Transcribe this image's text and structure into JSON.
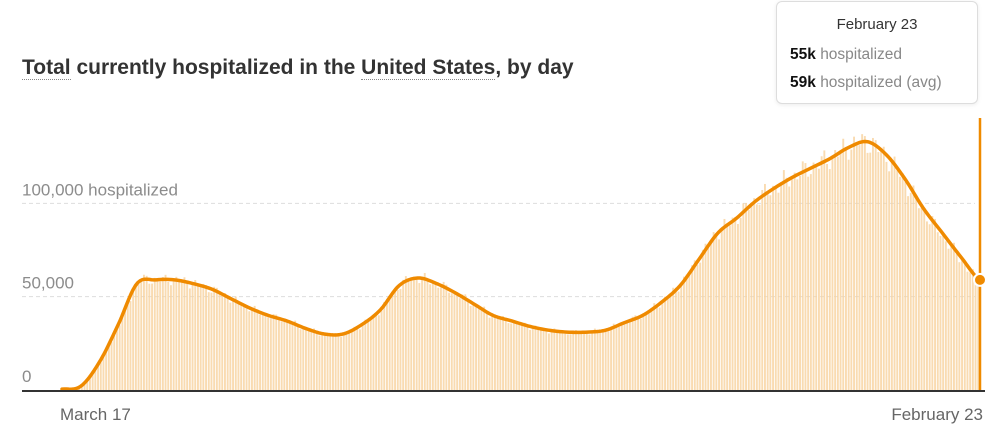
{
  "title": {
    "part1": "Total",
    "part2": " currently hospitalized in the ",
    "part3": "United States",
    "part4": ", by day"
  },
  "tooltip": {
    "date": "February 23",
    "rows": [
      {
        "value": "55k",
        "label": "hospitalized"
      },
      {
        "value": "59k",
        "label": "hospitalized (avg)"
      }
    ]
  },
  "colors": {
    "line": "#ef8a00",
    "bar": "#f8d5a3",
    "marker_line": "#ef8a00",
    "grid": "#dddddd",
    "tick_text": "#8c8c8c",
    "axis": "#333333"
  },
  "chart_data": {
    "type": "area",
    "title": "Total currently hospitalized in the United States, by day",
    "x_tick_labels": [
      "March 17",
      "February 23"
    ],
    "y_tick_labels": [
      {
        "value": 0,
        "label": "0"
      },
      {
        "value": 50000,
        "label": "50,000"
      },
      {
        "value": 100000,
        "label": "100,000 hospitalized"
      }
    ],
    "ylim": [
      0,
      150000
    ],
    "grid": true,
    "series": [
      {
        "name": "hospitalized (avg)",
        "style": "line",
        "points": [
          {
            "x": "March 17",
            "y": 500
          },
          {
            "x": "March 24",
            "y": 2000
          },
          {
            "x": "March 31",
            "y": 15000
          },
          {
            "x": "April 7",
            "y": 35000
          },
          {
            "x": "April 14",
            "y": 57000
          },
          {
            "x": "April 21",
            "y": 59000
          },
          {
            "x": "April 28",
            "y": 59000
          },
          {
            "x": "May 5",
            "y": 57000
          },
          {
            "x": "May 12",
            "y": 54000
          },
          {
            "x": "May 19",
            "y": 49000
          },
          {
            "x": "May 26",
            "y": 44000
          },
          {
            "x": "June 2",
            "y": 40000
          },
          {
            "x": "June 9",
            "y": 37000
          },
          {
            "x": "June 16",
            "y": 33000
          },
          {
            "x": "June 23",
            "y": 30000
          },
          {
            "x": "June 30",
            "y": 30000
          },
          {
            "x": "July 7",
            "y": 35000
          },
          {
            "x": "July 14",
            "y": 43000
          },
          {
            "x": "July 21",
            "y": 56000
          },
          {
            "x": "July 28",
            "y": 60000
          },
          {
            "x": "August 4",
            "y": 57000
          },
          {
            "x": "August 11",
            "y": 52000
          },
          {
            "x": "August 18",
            "y": 46000
          },
          {
            "x": "August 25",
            "y": 40000
          },
          {
            "x": "September 1",
            "y": 37000
          },
          {
            "x": "September 8",
            "y": 34000
          },
          {
            "x": "September 15",
            "y": 32000
          },
          {
            "x": "September 22",
            "y": 31000
          },
          {
            "x": "September 29",
            "y": 31000
          },
          {
            "x": "October 6",
            "y": 32000
          },
          {
            "x": "October 13",
            "y": 36000
          },
          {
            "x": "October 20",
            "y": 40000
          },
          {
            "x": "October 27",
            "y": 47000
          },
          {
            "x": "November 3",
            "y": 56000
          },
          {
            "x": "November 10",
            "y": 70000
          },
          {
            "x": "November 17",
            "y": 84000
          },
          {
            "x": "November 24",
            "y": 92000
          },
          {
            "x": "December 1",
            "y": 101000
          },
          {
            "x": "December 8",
            "y": 108000
          },
          {
            "x": "December 15",
            "y": 114000
          },
          {
            "x": "December 22",
            "y": 119000
          },
          {
            "x": "December 29",
            "y": 124000
          },
          {
            "x": "January 5",
            "y": 130000
          },
          {
            "x": "January 12",
            "y": 133000
          },
          {
            "x": "January 19",
            "y": 126000
          },
          {
            "x": "January 26",
            "y": 113000
          },
          {
            "x": "February 2",
            "y": 97000
          },
          {
            "x": "February 9",
            "y": 84000
          },
          {
            "x": "February 16",
            "y": 71000
          },
          {
            "x": "February 23",
            "y": 59000
          }
        ]
      }
    ],
    "highlight": {
      "x": "February 23",
      "value": 59000
    }
  }
}
